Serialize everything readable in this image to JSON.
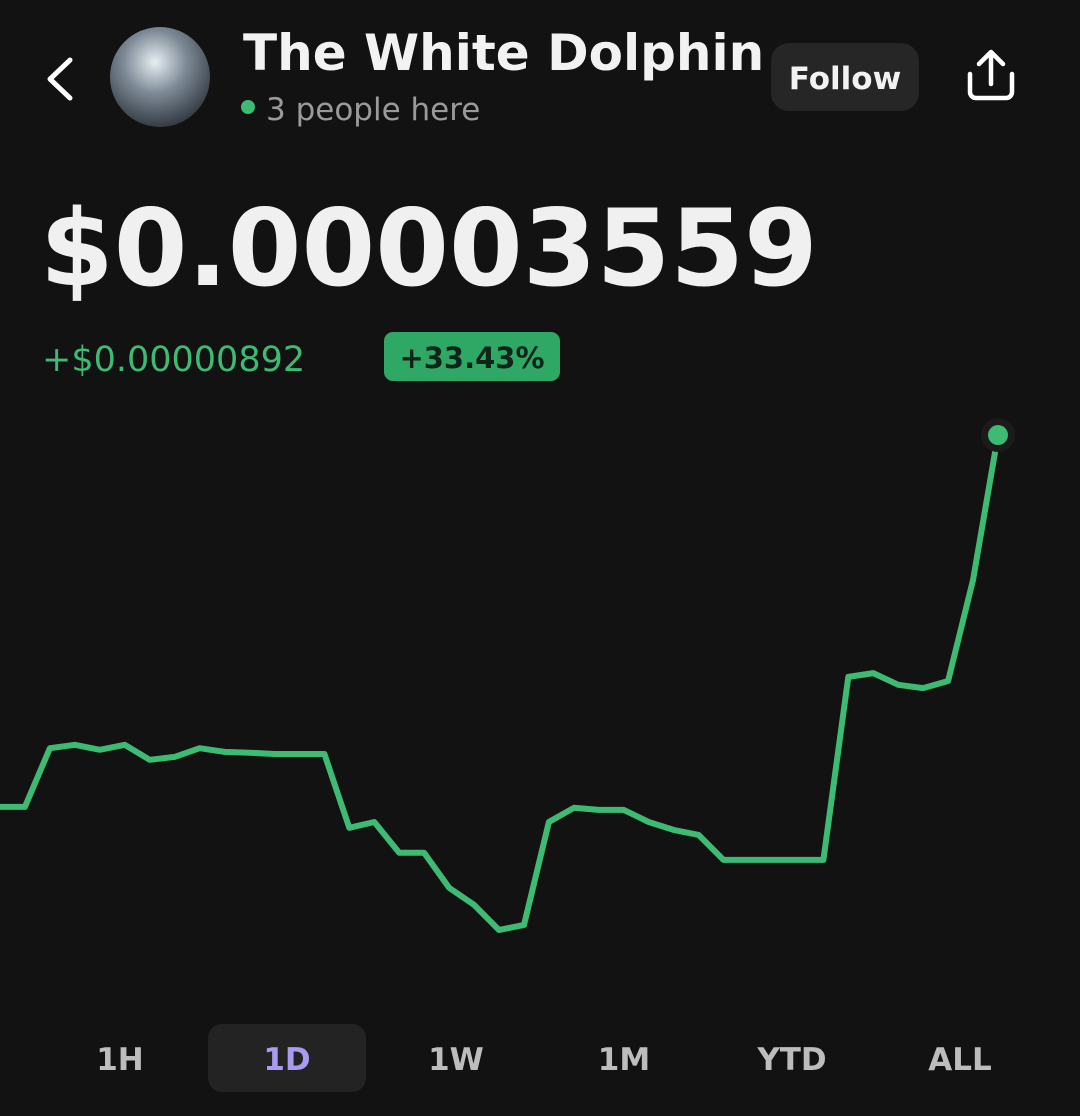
{
  "header": {
    "title": "The White Dolphin",
    "presence": "3 people here",
    "follow": "Follow"
  },
  "quote": {
    "price": "$0.00003559",
    "change": "+$0.00000892",
    "change_percent": "+33.43%"
  },
  "chart_data": {
    "type": "line",
    "color": "#3dbb73",
    "values": [
      2.667e-05,
      2.667e-05,
      2.808e-05,
      2.816e-05,
      2.804e-05,
      2.816e-05,
      2.78e-05,
      2.787e-05,
      2.808e-05,
      2.799e-05,
      2.797e-05,
      2.794e-05,
      2.794e-05,
      2.794e-05,
      2.617e-05,
      2.631e-05,
      2.557e-05,
      2.557e-05,
      2.473e-05,
      2.432e-05,
      2.372e-05,
      2.384e-05,
      2.631e-05,
      2.665e-05,
      2.66e-05,
      2.66e-05,
      2.631e-05,
      2.612e-05,
      2.6e-05,
      2.54e-05,
      2.54e-05,
      2.54e-05,
      2.54e-05,
      2.54e-05,
      2.979e-05,
      2.988e-05,
      2.96e-05,
      2.952e-05,
      2.969e-05,
      3.211e-05,
      3.559e-05
    ],
    "ylim": [
      2.204e-05,
      3.643e-05
    ]
  },
  "range_tabs": {
    "labels": [
      "1H",
      "1D",
      "1W",
      "1M",
      "YTD",
      "ALL"
    ],
    "selected": 1
  }
}
